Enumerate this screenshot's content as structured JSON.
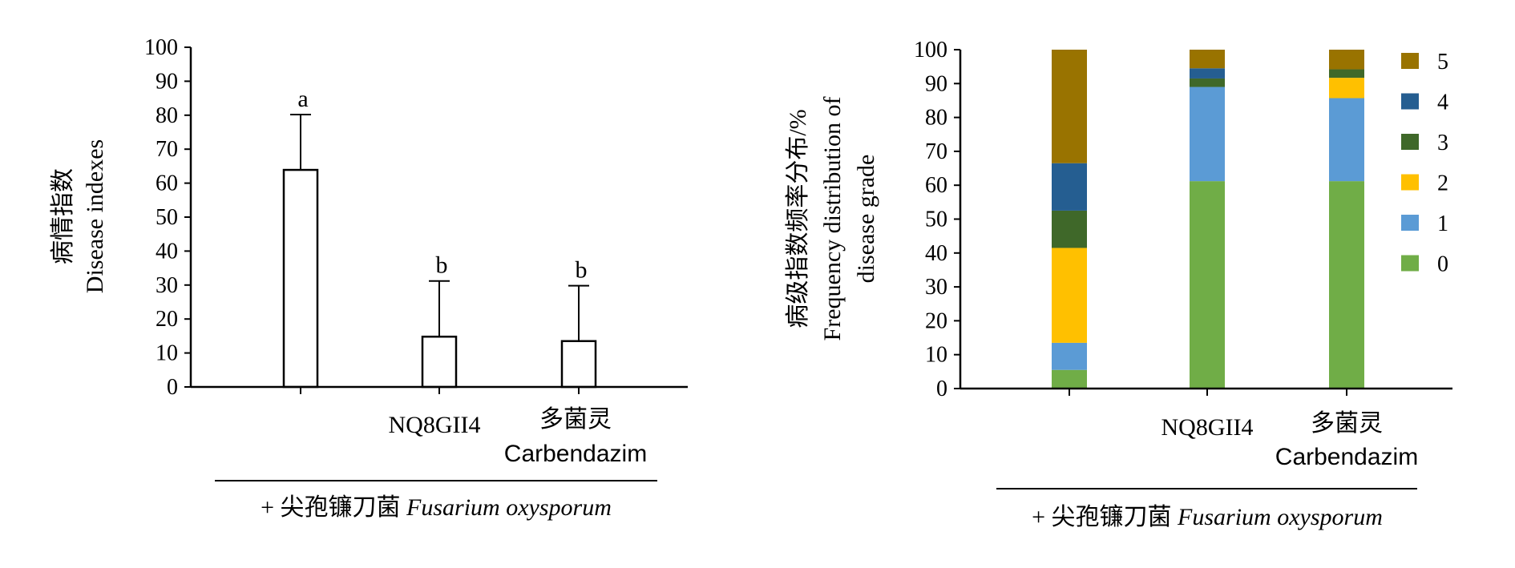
{
  "chart_data": [
    {
      "type": "bar",
      "categories": [
        "",
        "NQ8GII4",
        "多菌灵"
      ],
      "category_sublabels": [
        "",
        "",
        "Carbendazim"
      ],
      "values": [
        63.9,
        14.8,
        13.5
      ],
      "error_upper": [
        80.2,
        31.2,
        29.8
      ],
      "significance": [
        "a",
        "b",
        "b"
      ],
      "ylabel_lines": [
        "病情指数",
        "Disease indexes"
      ],
      "ylim": [
        0,
        100
      ],
      "yticks": [
        0,
        10,
        20,
        30,
        40,
        50,
        60,
        70,
        80,
        90,
        100
      ],
      "group_label": {
        "prefix": "+ 尖孢镰刀菌 ",
        "italic": "Fusarium oxysporum"
      },
      "bar_fill": "#ffffff",
      "bar_stroke": "#000000"
    },
    {
      "type": "bar",
      "stacked": true,
      "categories": [
        "",
        "NQ8GII4",
        "多菌灵"
      ],
      "category_sublabels": [
        "",
        "",
        "Carbendazim"
      ],
      "series": [
        {
          "name": "0",
          "color": "#70AD47",
          "values": [
            5.5,
            61.2,
            61.2
          ]
        },
        {
          "name": "1",
          "color": "#5B9BD5",
          "values": [
            8.0,
            27.8,
            24.5
          ]
        },
        {
          "name": "2",
          "color": "#FFC000",
          "values": [
            28.0,
            0.0,
            6.0
          ]
        },
        {
          "name": "3",
          "color": "#3F6829",
          "values": [
            11.0,
            2.5,
            2.5
          ]
        },
        {
          "name": "4",
          "color": "#255E91",
          "values": [
            14.0,
            3.0,
            0.0
          ]
        },
        {
          "name": "5",
          "color": "#997300",
          "values": [
            33.5,
            5.5,
            5.8
          ]
        }
      ],
      "ylabel_lines": [
        "病级指数频率分布/%",
        "Frequency distribution of",
        "disease grade"
      ],
      "ylim": [
        0,
        100
      ],
      "yticks": [
        0,
        10,
        20,
        30,
        40,
        50,
        60,
        70,
        80,
        90,
        100
      ],
      "legend_position": "right",
      "group_label": {
        "prefix": "+ 尖孢镰刀菌 ",
        "italic": "Fusarium oxysporum"
      }
    }
  ]
}
